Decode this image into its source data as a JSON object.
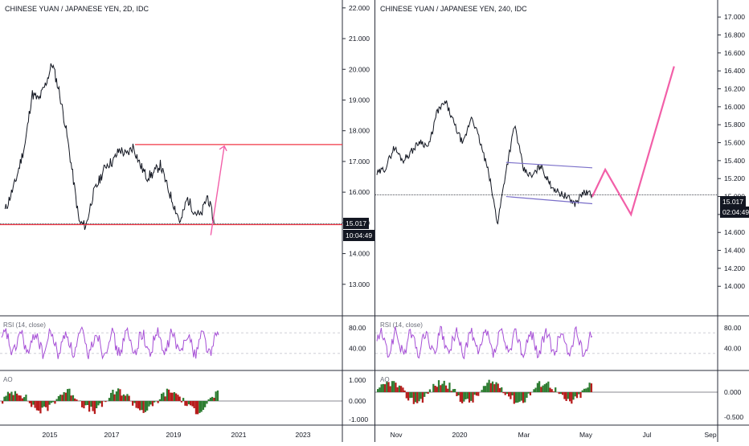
{
  "left": {
    "title": "CHINESE YUAN / JAPANESE YEN, 2D, IDC",
    "price_tag": "15.017",
    "time_tag": "10:04:49",
    "rsi_label": "RSI (14, close)",
    "ao_label": "AO",
    "price_ticks": [
      "22.000",
      "21.000",
      "20.000",
      "19.000",
      "18.000",
      "17.000",
      "16.000",
      "15.000",
      "14.000",
      "13.000",
      "12.000"
    ],
    "rsi_ticks": [
      "80.00",
      "40.00"
    ],
    "ao_ticks": [
      "1.000",
      "0.000",
      "-1.000"
    ],
    "time_ticks": [
      "2015",
      "2017",
      "2019",
      "2021",
      "2023"
    ]
  },
  "right": {
    "title": "CHINESE YUAN / JAPANESE YEN, 240, IDC",
    "price_tag": "15.017",
    "time_tag": "02:04:49",
    "rsi_label": "RSI (14, close)",
    "ao_label": "AO",
    "price_ticks": [
      "17.000",
      "16.800",
      "16.600",
      "16.400",
      "16.200",
      "16.000",
      "15.800",
      "15.600",
      "15.400",
      "15.200",
      "15.000",
      "14.800",
      "14.600",
      "14.400",
      "14.200",
      "14.000"
    ],
    "rsi_ticks": [
      "80.00",
      "40.00"
    ],
    "ao_ticks": [
      "0.000",
      "-0.500"
    ],
    "time_ticks": [
      "Nov",
      "2020",
      "Mar",
      "May",
      "Jul",
      "Sep"
    ]
  },
  "colors": {
    "candle": "#131722",
    "rsi": "#a64fd6",
    "ao_up": "#2e7d32",
    "ao_down": "#b71c1c",
    "level": "#f23645",
    "projection": "#f25fa8",
    "wedge": "#7a6fc9",
    "axis_bg": "#ffffff"
  },
  "chart_data": [
    {
      "type": "line",
      "name": "left-price",
      "x": [
        2014.0,
        2014.3,
        2014.6,
        2014.8,
        2015.0,
        2015.2,
        2015.4,
        2015.6,
        2015.8,
        2016.0,
        2016.2,
        2016.4,
        2016.6,
        2016.8,
        2017.0,
        2017.2,
        2017.4,
        2017.6,
        2017.8,
        2018.0,
        2018.2,
        2018.4,
        2018.6,
        2018.8,
        2019.0,
        2019.2,
        2019.4,
        2019.6,
        2019.8,
        2020.0,
        2020.2
      ],
      "y": [
        15.4,
        16.3,
        17.6,
        19.2,
        19.0,
        19.5,
        20.2,
        19.3,
        18.1,
        16.6,
        15.0,
        14.9,
        15.9,
        16.4,
        16.9,
        17.0,
        17.4,
        17.2,
        17.5,
        16.9,
        16.5,
        16.6,
        16.9,
        16.2,
        15.6,
        15.0,
        15.8,
        15.4,
        15.2,
        15.9,
        15.0
      ],
      "levels": [
        17.55,
        14.97
      ],
      "projection": [
        [
          2020.1,
          14.6
        ],
        [
          2020.5,
          17.5
        ]
      ],
      "xlim": [
        2013.85,
        2024.0
      ],
      "ylim": [
        12.0,
        22.1
      ]
    },
    {
      "type": "line",
      "name": "right-price",
      "x": [
        0,
        4,
        8,
        12,
        16,
        20,
        24,
        28,
        32,
        36,
        40,
        44,
        48,
        52,
        56,
        60,
        64,
        68,
        72,
        76,
        80,
        84,
        88,
        92,
        96,
        100
      ],
      "y": [
        15.25,
        15.32,
        15.55,
        15.4,
        15.5,
        15.62,
        15.55,
        15.95,
        16.05,
        15.8,
        15.58,
        15.9,
        15.6,
        15.25,
        14.7,
        15.3,
        15.8,
        15.3,
        15.22,
        15.35,
        15.15,
        15.05,
        15.0,
        14.92,
        15.05,
        15.02
      ],
      "levels": [
        15.017
      ],
      "projection": [
        [
          100,
          15.0
        ],
        [
          106,
          15.3
        ],
        [
          118,
          14.8
        ],
        [
          138,
          16.45
        ]
      ],
      "ylim": [
        13.85,
        17.1
      ]
    }
  ]
}
